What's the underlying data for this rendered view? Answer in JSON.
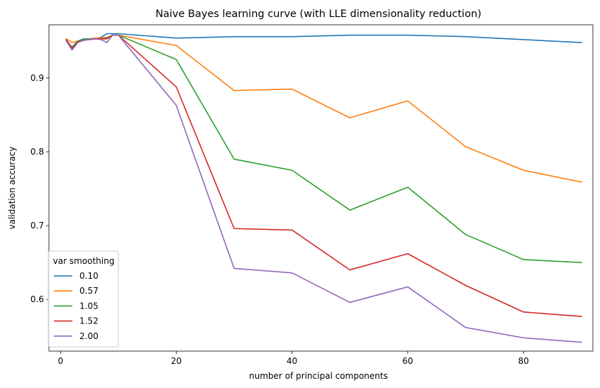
{
  "chart_data": {
    "type": "line",
    "title": "Naive Bayes learning curve (with LLE dimensionality reduction)",
    "xlabel": "number of principal components",
    "ylabel": "validation accuracy",
    "xlim": [
      -2,
      92
    ],
    "ylim": [
      0.53,
      0.972
    ],
    "xticks": [
      0,
      20,
      40,
      60,
      80
    ],
    "yticks": [
      0.6,
      0.7,
      0.8,
      0.9
    ],
    "xtick_labels": [
      "0",
      "20",
      "40",
      "60",
      "80"
    ],
    "ytick_labels": [
      "0.6",
      "0.7",
      "0.8",
      "0.9"
    ],
    "grid": false,
    "legend": {
      "title": "var smoothing",
      "placement": "lower-left"
    },
    "x": [
      1,
      2,
      3,
      4,
      5,
      6,
      7,
      8,
      9,
      10,
      20,
      30,
      40,
      50,
      60,
      70,
      80,
      90
    ],
    "series": [
      {
        "name": "0.10",
        "color": "#1f77b4",
        "values": [
          0.951,
          0.941,
          0.95,
          0.953,
          0.953,
          0.953,
          0.955,
          0.96,
          0.96,
          0.96,
          0.954,
          0.956,
          0.956,
          0.958,
          0.958,
          0.956,
          0.952,
          0.948
        ]
      },
      {
        "name": "0.57",
        "color": "#ff7f0e",
        "values": [
          0.953,
          0.948,
          0.95,
          0.952,
          0.953,
          0.954,
          0.954,
          0.955,
          0.958,
          0.958,
          0.944,
          0.883,
          0.885,
          0.846,
          0.869,
          0.807,
          0.775,
          0.759
        ]
      },
      {
        "name": "1.05",
        "color": "#2ca02c",
        "values": [
          0.95,
          0.942,
          0.95,
          0.952,
          0.953,
          0.953,
          0.953,
          0.954,
          0.958,
          0.958,
          0.925,
          0.79,
          0.775,
          0.721,
          0.752,
          0.688,
          0.654,
          0.65
        ]
      },
      {
        "name": "1.52",
        "color": "#d62728",
        "values": [
          0.952,
          0.94,
          0.949,
          0.951,
          0.952,
          0.953,
          0.953,
          0.953,
          0.958,
          0.958,
          0.888,
          0.696,
          0.694,
          0.64,
          0.662,
          0.619,
          0.583,
          0.577
        ]
      },
      {
        "name": "2.00",
        "color": "#9467bd",
        "values": [
          0.95,
          0.938,
          0.948,
          0.951,
          0.952,
          0.953,
          0.952,
          0.948,
          0.958,
          0.958,
          0.863,
          0.642,
          0.636,
          0.596,
          0.617,
          0.562,
          0.548,
          0.542
        ]
      }
    ]
  }
}
